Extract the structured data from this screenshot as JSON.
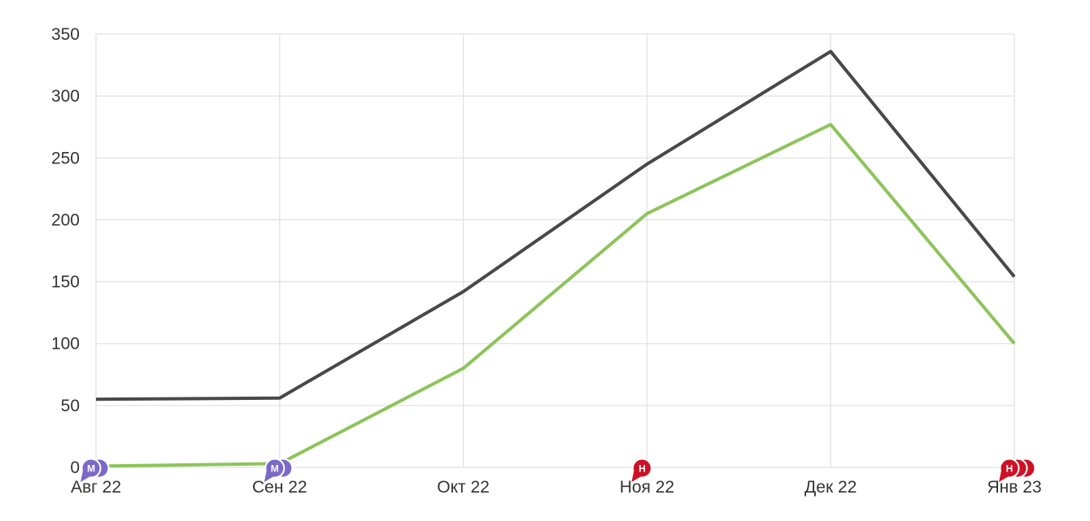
{
  "chart_data": {
    "type": "line",
    "title": "",
    "xlabel": "",
    "ylabel": "",
    "categories": [
      "Авг 22",
      "Сен 22",
      "Окт 22",
      "Ноя 22",
      "Дек 22",
      "Янв 23"
    ],
    "series": [
      {
        "name": "series-dark",
        "color": "#484848",
        "values": [
          55,
          56,
          142,
          245,
          336,
          154
        ]
      },
      {
        "name": "series-green",
        "color": "#8cc45a",
        "values": [
          1,
          3,
          80,
          205,
          277,
          100
        ]
      }
    ],
    "ylim": [
      0,
      350
    ],
    "y_tick_step": 50,
    "y_tick_labels": [
      "0",
      "50",
      "100",
      "150",
      "200",
      "250",
      "300",
      "350"
    ],
    "grid": true,
    "legend": "none",
    "annotations": [
      {
        "category": "Авг 22",
        "category_index": 0,
        "letter": "М",
        "color": "#7b69c8",
        "count": 2
      },
      {
        "category": "Сен 22",
        "category_index": 1,
        "letter": "М",
        "color": "#7b69c8",
        "count": 2
      },
      {
        "category": "Ноя 22",
        "category_index": 3,
        "letter": "Н",
        "color": "#ce1126",
        "count": 1
      },
      {
        "category": "Янв 23",
        "category_index": 5,
        "letter": "Н",
        "color": "#ce1126",
        "count": 3
      }
    ]
  },
  "styles": {
    "background": "#ffffff",
    "grid_color": "#e2e2e2",
    "axis_text_color": "#333333",
    "badge_text_color": "#ffffff",
    "badge_outline_color": "#ffffff"
  }
}
